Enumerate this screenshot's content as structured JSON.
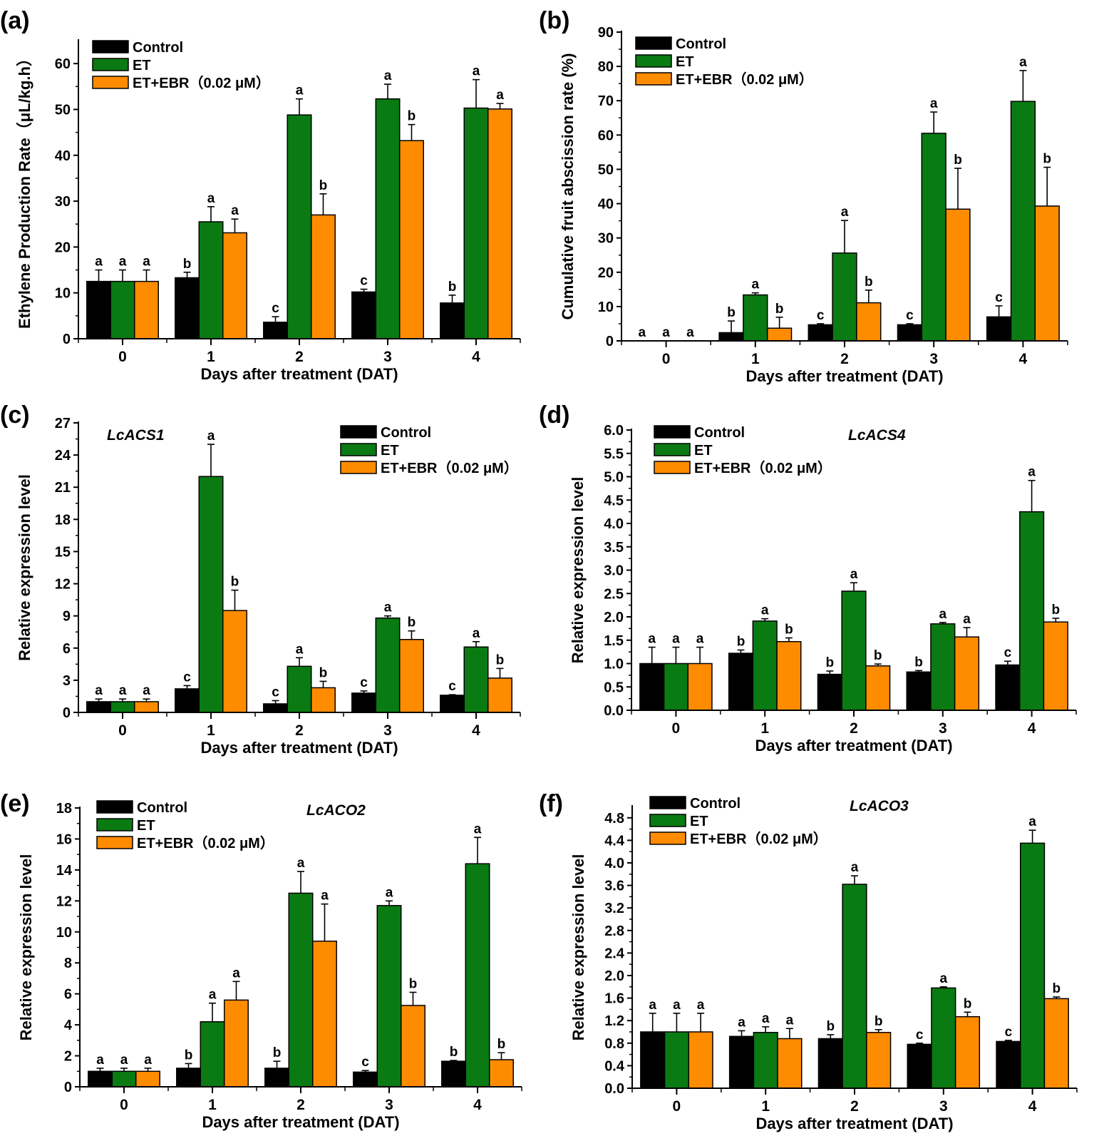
{
  "chart_data": [
    {
      "panel_label": "(a)",
      "type": "bar",
      "title": "",
      "gene_label": "",
      "xlabel": "Days after treatment (DAT)",
      "ylabel": "Ethylene Production Rate（μL/kg.h）",
      "ylim": [
        0,
        65
      ],
      "yticks": [
        0,
        10,
        20,
        30,
        40,
        50,
        60
      ],
      "categories": [
        "0",
        "1",
        "2",
        "3",
        "4"
      ],
      "legend_position": "top-left",
      "series": [
        {
          "name": "Control",
          "color": "#000000",
          "values": [
            12.5,
            13.3,
            3.6,
            10.2,
            7.8
          ],
          "errors": [
            2.5,
            1.2,
            1.2,
            0.6,
            1.7
          ],
          "letters": [
            "a",
            "b",
            "c",
            "c",
            "b"
          ]
        },
        {
          "name": "ET",
          "color": "#0a7a13",
          "values": [
            12.5,
            25.5,
            48.8,
            52.3,
            50.3
          ],
          "errors": [
            2.5,
            3.3,
            3.5,
            3.2,
            6.2
          ],
          "letters": [
            "a",
            "a",
            "a",
            "a",
            "a"
          ]
        },
        {
          "name": "ET+EBR（0.02 μM）",
          "color": "#ff8c00",
          "values": [
            12.5,
            23.1,
            27.0,
            43.2,
            50.1
          ],
          "errors": [
            2.5,
            3.0,
            4.6,
            3.5,
            1.2
          ],
          "letters": [
            "a",
            "a",
            "b",
            "b",
            "a"
          ]
        }
      ]
    },
    {
      "panel_label": "(b)",
      "type": "bar",
      "title": "",
      "gene_label": "",
      "xlabel": "Days after treatment (DAT)",
      "ylabel": "Cumulative fruit abscission rate (%)",
      "ylim": [
        0,
        90
      ],
      "yticks": [
        0,
        10,
        20,
        30,
        40,
        50,
        60,
        70,
        80,
        90
      ],
      "categories": [
        "0",
        "1",
        "2",
        "3",
        "4"
      ],
      "legend_position": "top-left",
      "series": [
        {
          "name": "Control",
          "color": "#000000",
          "values": [
            0,
            2.4,
            4.7,
            4.7,
            7.0
          ],
          "errors": [
            0,
            3.4,
            0.3,
            0.3,
            3.2
          ],
          "letters": [
            "a",
            "b",
            "c",
            "c",
            "c"
          ]
        },
        {
          "name": "ET",
          "color": "#0a7a13",
          "values": [
            0,
            13.4,
            25.6,
            60.5,
            69.8
          ],
          "errors": [
            0,
            0.6,
            9.5,
            6.2,
            9.0
          ],
          "letters": [
            "a",
            "a",
            "a",
            "a",
            "a"
          ]
        },
        {
          "name": "ET+EBR（0.02 μM）",
          "color": "#ff8c00",
          "values": [
            0,
            3.7,
            11.1,
            38.4,
            39.3
          ],
          "errors": [
            0,
            3.2,
            3.7,
            11.9,
            11.3
          ],
          "letters": [
            "a",
            "b",
            "b",
            "b",
            "b"
          ]
        }
      ]
    },
    {
      "panel_label": "(c)",
      "type": "bar",
      "title": "",
      "gene_label": "LcACS1",
      "xlabel": "Days after treatment (DAT)",
      "ylabel": "Relative expression level",
      "ylim": [
        0,
        27
      ],
      "yticks": [
        0,
        3,
        6,
        9,
        12,
        15,
        18,
        21,
        24,
        27
      ],
      "categories": [
        "0",
        "1",
        "2",
        "3",
        "4"
      ],
      "legend_position": "top-right",
      "series": [
        {
          "name": "Control",
          "color": "#000000",
          "values": [
            1.0,
            2.2,
            0.8,
            1.8,
            1.6
          ],
          "errors": [
            0.25,
            0.3,
            0.3,
            0.2,
            0.05
          ],
          "letters": [
            "a",
            "c",
            "c",
            "c",
            "c"
          ]
        },
        {
          "name": "ET",
          "color": "#0a7a13",
          "values": [
            1.0,
            22.0,
            4.3,
            8.8,
            6.1
          ],
          "errors": [
            0.25,
            3.0,
            0.8,
            0.2,
            0.5
          ],
          "letters": [
            "a",
            "a",
            "a",
            "a",
            "a"
          ]
        },
        {
          "name": "ET+EBR（0.02 μM）",
          "color": "#ff8c00",
          "values": [
            1.0,
            9.5,
            2.3,
            6.8,
            3.2
          ],
          "errors": [
            0.25,
            1.9,
            0.6,
            0.8,
            0.9
          ],
          "letters": [
            "a",
            "b",
            "b",
            "b",
            "b"
          ]
        }
      ]
    },
    {
      "panel_label": "(d)",
      "type": "bar",
      "title": "",
      "gene_label": "LcACS4",
      "xlabel": "Days after treatment (DAT)",
      "ylabel": "Relative expression level",
      "ylim": [
        0,
        6
      ],
      "yticks": [
        0.0,
        0.5,
        1.0,
        1.5,
        2.0,
        2.5,
        3.0,
        3.5,
        4.0,
        4.5,
        5.0,
        5.5,
        6.0
      ],
      "categories": [
        "0",
        "1",
        "2",
        "3",
        "4"
      ],
      "legend_position": "top-left",
      "series": [
        {
          "name": "Control",
          "color": "#000000",
          "values": [
            1.0,
            1.22,
            0.77,
            0.82,
            0.97
          ],
          "errors": [
            0.35,
            0.07,
            0.07,
            0.03,
            0.08
          ],
          "letters": [
            "a",
            "b",
            "b",
            "b",
            "c"
          ]
        },
        {
          "name": "ET",
          "color": "#0a7a13",
          "values": [
            1.0,
            1.91,
            2.55,
            1.85,
            4.25
          ],
          "errors": [
            0.35,
            0.05,
            0.18,
            0.03,
            0.67
          ],
          "letters": [
            "a",
            "a",
            "a",
            "a",
            "a"
          ]
        },
        {
          "name": "ET+EBR（0.02 μM）",
          "color": "#ff8c00",
          "values": [
            1.0,
            1.47,
            0.95,
            1.57,
            1.89
          ],
          "errors": [
            0.35,
            0.08,
            0.04,
            0.2,
            0.08
          ],
          "letters": [
            "a",
            "b",
            "b",
            "a",
            "b"
          ]
        }
      ]
    },
    {
      "panel_label": "(e)",
      "type": "bar",
      "title": "",
      "gene_label": "LcACO2",
      "xlabel": "Days after treatment (DAT)",
      "ylabel": "Relative expression level",
      "ylim": [
        0,
        18
      ],
      "yticks": [
        0,
        2,
        4,
        6,
        8,
        10,
        12,
        14,
        16,
        18
      ],
      "categories": [
        "0",
        "1",
        "2",
        "3",
        "4"
      ],
      "legend_position": "top-left",
      "series": [
        {
          "name": "Control",
          "color": "#000000",
          "values": [
            1.0,
            1.2,
            1.2,
            0.95,
            1.65
          ],
          "errors": [
            0.2,
            0.3,
            0.45,
            0.1,
            0.05
          ],
          "letters": [
            "a",
            "b",
            "b",
            "c",
            "b"
          ]
        },
        {
          "name": "ET",
          "color": "#0a7a13",
          "values": [
            1.0,
            4.2,
            12.5,
            11.7,
            14.4
          ],
          "errors": [
            0.2,
            1.2,
            1.4,
            0.3,
            1.7
          ],
          "letters": [
            "a",
            "a",
            "a",
            "a",
            "a"
          ]
        },
        {
          "name": "ET+EBR（0.02 μM）",
          "color": "#ff8c00",
          "values": [
            1.0,
            5.6,
            9.4,
            5.25,
            1.75
          ],
          "errors": [
            0.2,
            1.2,
            2.4,
            0.85,
            0.45
          ],
          "letters": [
            "a",
            "a",
            "a",
            "b",
            "b"
          ]
        }
      ]
    },
    {
      "panel_label": "(f)",
      "type": "bar",
      "title": "",
      "gene_label": "LcACO3",
      "xlabel": "Days after treatment (DAT)",
      "ylabel": "Relative expression level",
      "ylim": [
        0,
        5.0
      ],
      "yticks": [
        0.0,
        0.4,
        0.8,
        1.2,
        1.6,
        2.0,
        2.4,
        2.8,
        3.2,
        3.6,
        4.0,
        4.4,
        4.8
      ],
      "categories": [
        "0",
        "1",
        "2",
        "3",
        "4"
      ],
      "legend_position": "top-left",
      "series": [
        {
          "name": "Control",
          "color": "#000000",
          "values": [
            1.0,
            0.92,
            0.88,
            0.78,
            0.83
          ],
          "errors": [
            0.33,
            0.1,
            0.07,
            0.02,
            0.02
          ],
          "letters": [
            "a",
            "a",
            "b",
            "c",
            "c"
          ]
        },
        {
          "name": "ET",
          "color": "#0a7a13",
          "values": [
            1.0,
            0.99,
            3.62,
            1.78,
            4.35
          ],
          "errors": [
            0.33,
            0.1,
            0.15,
            0.02,
            0.23
          ],
          "letters": [
            "a",
            "a",
            "a",
            "a",
            "a"
          ]
        },
        {
          "name": "ET+EBR（0.02 μM）",
          "color": "#ff8c00",
          "values": [
            1.0,
            0.88,
            0.99,
            1.27,
            1.59
          ],
          "errors": [
            0.33,
            0.18,
            0.05,
            0.08,
            0.03
          ],
          "letters": [
            "a",
            "a",
            "b",
            "b",
            "b"
          ]
        }
      ]
    }
  ]
}
